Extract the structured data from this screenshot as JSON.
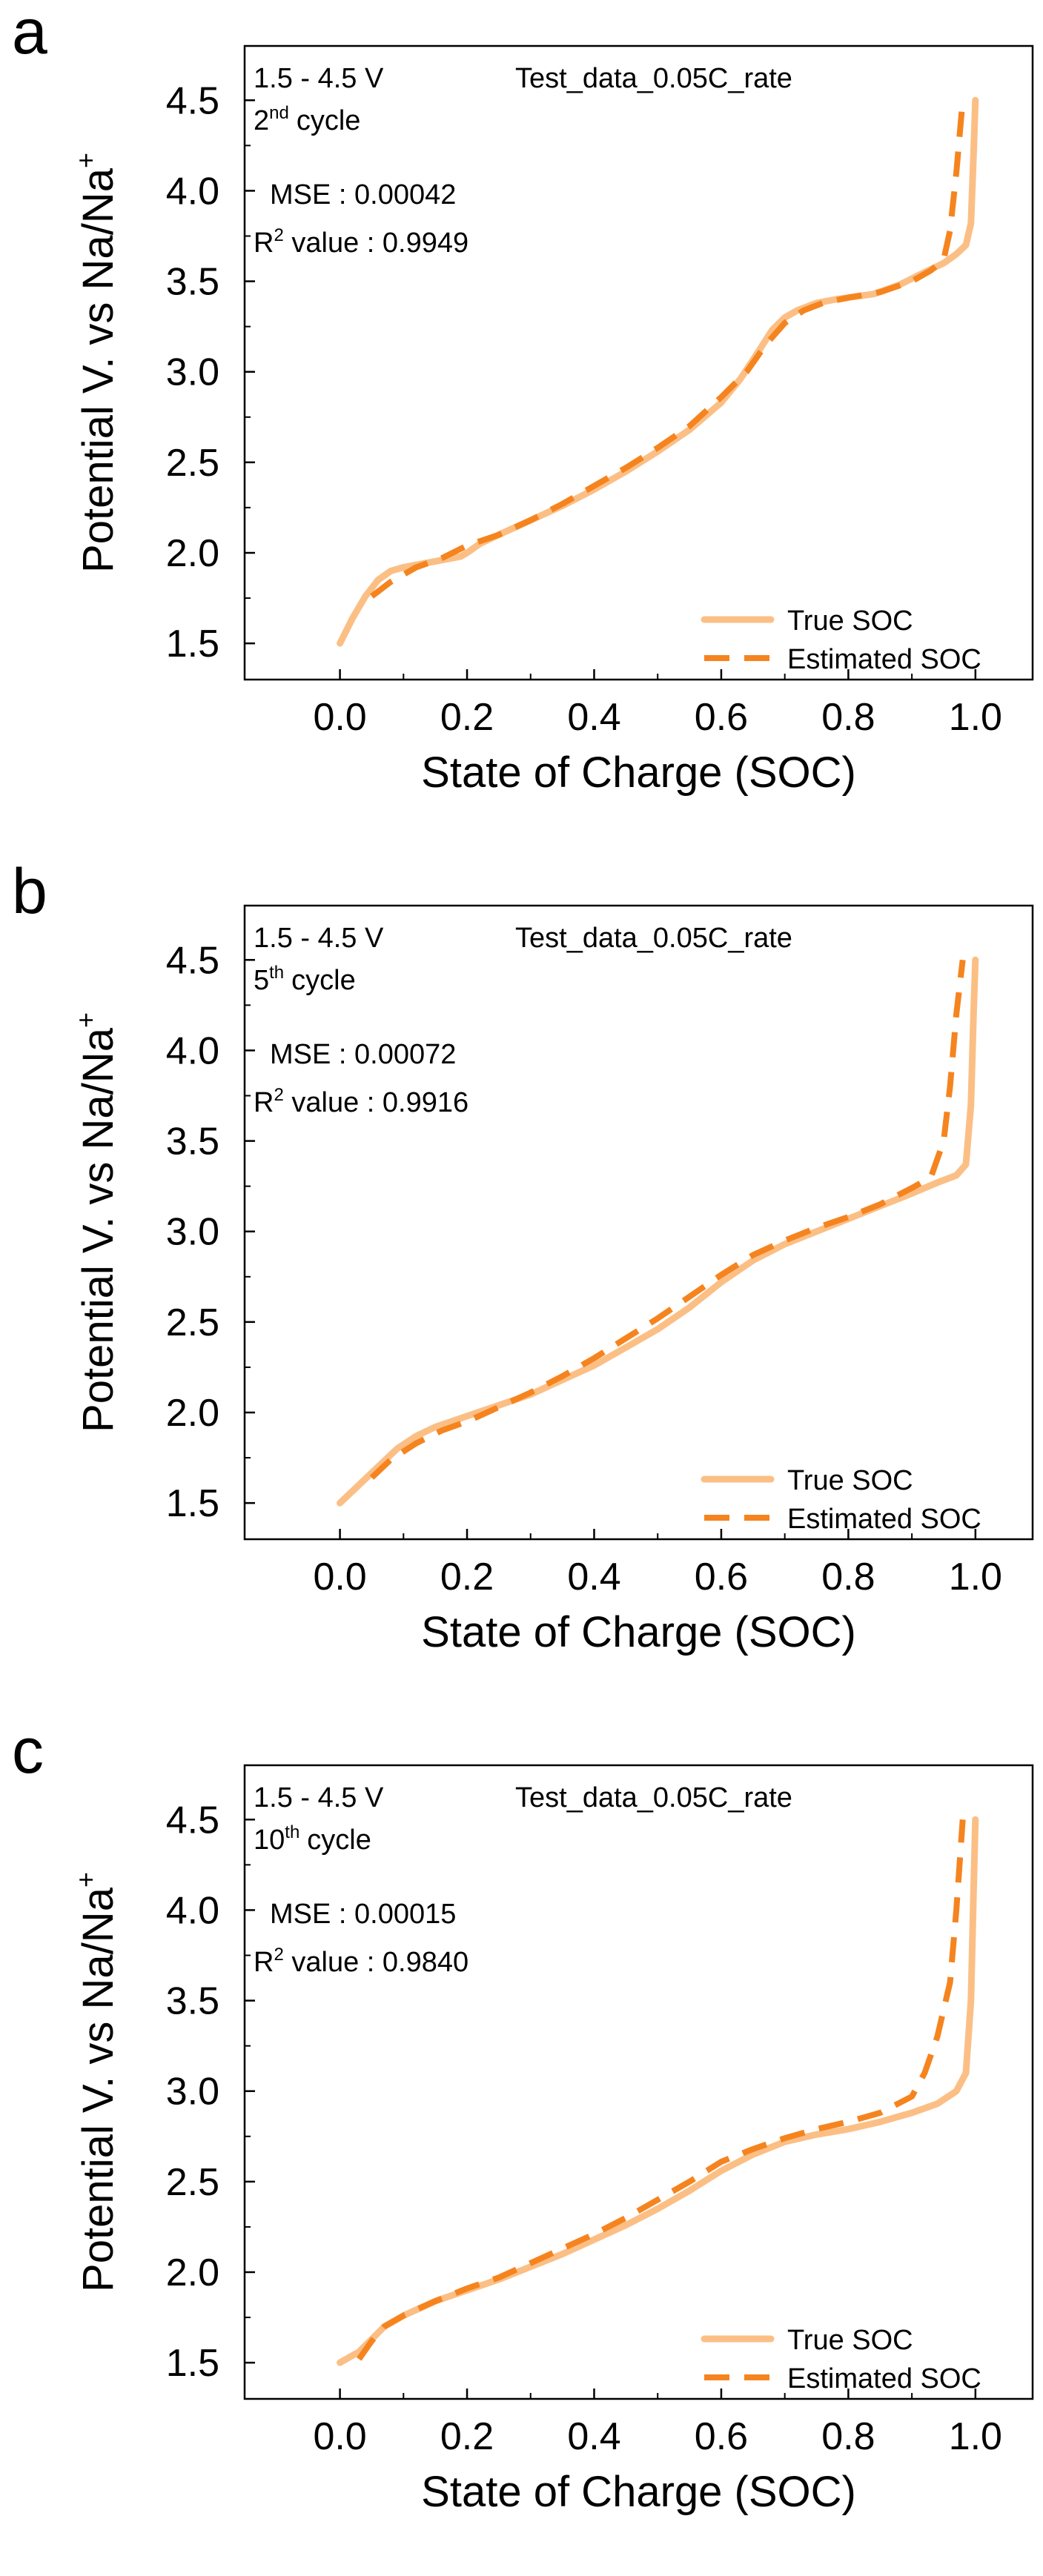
{
  "chart_data": [
    {
      "type": "line",
      "panel_label": "a",
      "voltage_range": "1.5 - 4.5 V",
      "cycle_number": "2",
      "cycle_suffix": "nd",
      "cycle_word": "cycle",
      "test_label": "Test_data_0.05C_rate",
      "mse_text": "MSE : 0.00042",
      "r2_prefix": "R",
      "r2_sup": "2",
      "r2_suffix": " value : 0.9949",
      "xlabel": "State of Charge (SOC)",
      "ylabel_main": "Potential V. vs Na/Na",
      "ylabel_sup": "+",
      "xlim": [
        -0.15,
        1.09
      ],
      "ylim": [
        1.3,
        4.8
      ],
      "xticks": [
        "0.0",
        "0.2",
        "0.4",
        "0.6",
        "0.8",
        "1.0"
      ],
      "yticks": [
        "1.5",
        "2.0",
        "2.5",
        "3.0",
        "3.5",
        "4.0",
        "4.5"
      ],
      "legend": [
        "True SOC",
        "Estimated SOC"
      ],
      "series": [
        {
          "name": "True SOC",
          "x": [
            0.0,
            0.02,
            0.04,
            0.06,
            0.08,
            0.1,
            0.13,
            0.16,
            0.19,
            0.2,
            0.22,
            0.25,
            0.3,
            0.35,
            0.4,
            0.45,
            0.5,
            0.55,
            0.6,
            0.63,
            0.66,
            0.68,
            0.7,
            0.72,
            0.75,
            0.78,
            0.8,
            0.84,
            0.88,
            0.92,
            0.95,
            0.97,
            0.985,
            0.993,
            0.997,
            1.0
          ],
          "y": [
            1.5,
            1.64,
            1.76,
            1.85,
            1.9,
            1.92,
            1.94,
            1.96,
            1.98,
            2.0,
            2.05,
            2.1,
            2.18,
            2.26,
            2.35,
            2.45,
            2.56,
            2.68,
            2.83,
            2.96,
            3.12,
            3.23,
            3.3,
            3.34,
            3.38,
            3.4,
            3.41,
            3.43,
            3.48,
            3.55,
            3.6,
            3.65,
            3.7,
            3.82,
            4.2,
            4.5
          ]
        },
        {
          "name": "Estimated SOC",
          "x": [
            0.05,
            0.08,
            0.12,
            0.16,
            0.2,
            0.25,
            0.3,
            0.35,
            0.4,
            0.45,
            0.5,
            0.55,
            0.6,
            0.64,
            0.67,
            0.7,
            0.73,
            0.76,
            0.8,
            0.85,
            0.9,
            0.93,
            0.95,
            0.96,
            0.97,
            0.98
          ],
          "y": [
            1.76,
            1.84,
            1.92,
            1.97,
            2.04,
            2.1,
            2.18,
            2.27,
            2.37,
            2.47,
            2.58,
            2.7,
            2.86,
            3.0,
            3.15,
            3.27,
            3.34,
            3.38,
            3.41,
            3.44,
            3.5,
            3.56,
            3.62,
            3.78,
            4.1,
            4.5
          ]
        }
      ]
    },
    {
      "type": "line",
      "panel_label": "b",
      "voltage_range": "1.5 - 4.5 V",
      "cycle_number": "5",
      "cycle_suffix": "th",
      "cycle_word": "cycle",
      "test_label": "Test_data_0.05C_rate",
      "mse_text": "MSE : 0.00072",
      "r2_prefix": "R",
      "r2_sup": "2",
      "r2_suffix": " value : 0.9916",
      "xlabel": "State of Charge (SOC)",
      "ylabel_main": "Potential V. vs Na/Na",
      "ylabel_sup": "+",
      "xlim": [
        -0.15,
        1.09
      ],
      "ylim": [
        1.3,
        4.8
      ],
      "xticks": [
        "0.0",
        "0.2",
        "0.4",
        "0.6",
        "0.8",
        "1.0"
      ],
      "yticks": [
        "1.5",
        "2.0",
        "2.5",
        "3.0",
        "3.5",
        "4.0",
        "4.5"
      ],
      "legend": [
        "True SOC",
        "Estimated SOC"
      ],
      "series": [
        {
          "name": "True SOC",
          "x": [
            0.0,
            0.03,
            0.06,
            0.09,
            0.12,
            0.15,
            0.2,
            0.25,
            0.3,
            0.35,
            0.4,
            0.45,
            0.5,
            0.55,
            0.6,
            0.65,
            0.7,
            0.75,
            0.8,
            0.85,
            0.9,
            0.94,
            0.97,
            0.985,
            0.993,
            0.997,
            1.0
          ],
          "y": [
            1.5,
            1.6,
            1.7,
            1.8,
            1.87,
            1.92,
            1.98,
            2.04,
            2.1,
            2.18,
            2.26,
            2.36,
            2.46,
            2.58,
            2.72,
            2.84,
            2.93,
            3.0,
            3.07,
            3.14,
            3.21,
            3.27,
            3.31,
            3.37,
            3.7,
            4.2,
            4.5
          ]
        },
        {
          "name": "Estimated SOC",
          "x": [
            0.05,
            0.08,
            0.12,
            0.16,
            0.2,
            0.25,
            0.3,
            0.35,
            0.4,
            0.45,
            0.5,
            0.55,
            0.6,
            0.65,
            0.7,
            0.75,
            0.8,
            0.85,
            0.9,
            0.93,
            0.95,
            0.96,
            0.97,
            0.98
          ],
          "y": [
            1.64,
            1.74,
            1.83,
            1.9,
            1.95,
            2.03,
            2.11,
            2.2,
            2.3,
            2.41,
            2.52,
            2.64,
            2.76,
            2.87,
            2.95,
            3.02,
            3.08,
            3.15,
            3.24,
            3.3,
            3.5,
            3.8,
            4.2,
            4.5
          ]
        }
      ]
    },
    {
      "type": "line",
      "panel_label": "c",
      "voltage_range": "1.5 - 4.5 V",
      "cycle_number": "10",
      "cycle_suffix": "th",
      "cycle_word": "cycle",
      "test_label": "Test_data_0.05C_rate",
      "mse_text": "MSE : 0.00015",
      "r2_prefix": "R",
      "r2_sup": "2",
      "r2_suffix": " value : 0.9840",
      "xlabel": "State of Charge (SOC)",
      "ylabel_main": "Potential V. vs Na/Na",
      "ylabel_sup": "+",
      "xlim": [
        -0.15,
        1.09
      ],
      "ylim": [
        1.3,
        4.8
      ],
      "xticks": [
        "0.0",
        "0.2",
        "0.4",
        "0.6",
        "0.8",
        "1.0"
      ],
      "yticks": [
        "1.5",
        "2.0",
        "2.5",
        "3.0",
        "3.5",
        "4.0",
        "4.5"
      ],
      "legend": [
        "True SOC",
        "Estimated SOC"
      ],
      "series": [
        {
          "name": "True SOC",
          "x": [
            0.0,
            0.03,
            0.05,
            0.07,
            0.1,
            0.15,
            0.2,
            0.25,
            0.3,
            0.35,
            0.4,
            0.45,
            0.5,
            0.55,
            0.6,
            0.65,
            0.7,
            0.75,
            0.8,
            0.85,
            0.9,
            0.94,
            0.97,
            0.985,
            0.993,
            0.997,
            1.0
          ],
          "y": [
            1.5,
            1.56,
            1.63,
            1.7,
            1.76,
            1.84,
            1.9,
            1.96,
            2.03,
            2.1,
            2.18,
            2.26,
            2.35,
            2.45,
            2.56,
            2.65,
            2.72,
            2.76,
            2.79,
            2.83,
            2.88,
            2.93,
            3.0,
            3.1,
            3.5,
            4.1,
            4.5
          ]
        },
        {
          "name": "Estimated SOC",
          "x": [
            0.03,
            0.05,
            0.07,
            0.1,
            0.15,
            0.2,
            0.25,
            0.3,
            0.35,
            0.4,
            0.45,
            0.5,
            0.55,
            0.6,
            0.65,
            0.7,
            0.75,
            0.8,
            0.85,
            0.9,
            0.92,
            0.94,
            0.96,
            0.97,
            0.98
          ],
          "y": [
            1.52,
            1.62,
            1.7,
            1.76,
            1.84,
            1.91,
            1.97,
            2.05,
            2.13,
            2.21,
            2.3,
            2.4,
            2.5,
            2.61,
            2.68,
            2.74,
            2.79,
            2.83,
            2.88,
            2.97,
            3.1,
            3.3,
            3.6,
            4.0,
            4.5
          ]
        }
      ]
    }
  ],
  "colors": {
    "true_soc": "#fbbf85",
    "estimated_soc": "#f5841f",
    "axis": "#000000",
    "background": "#ffffff"
  }
}
